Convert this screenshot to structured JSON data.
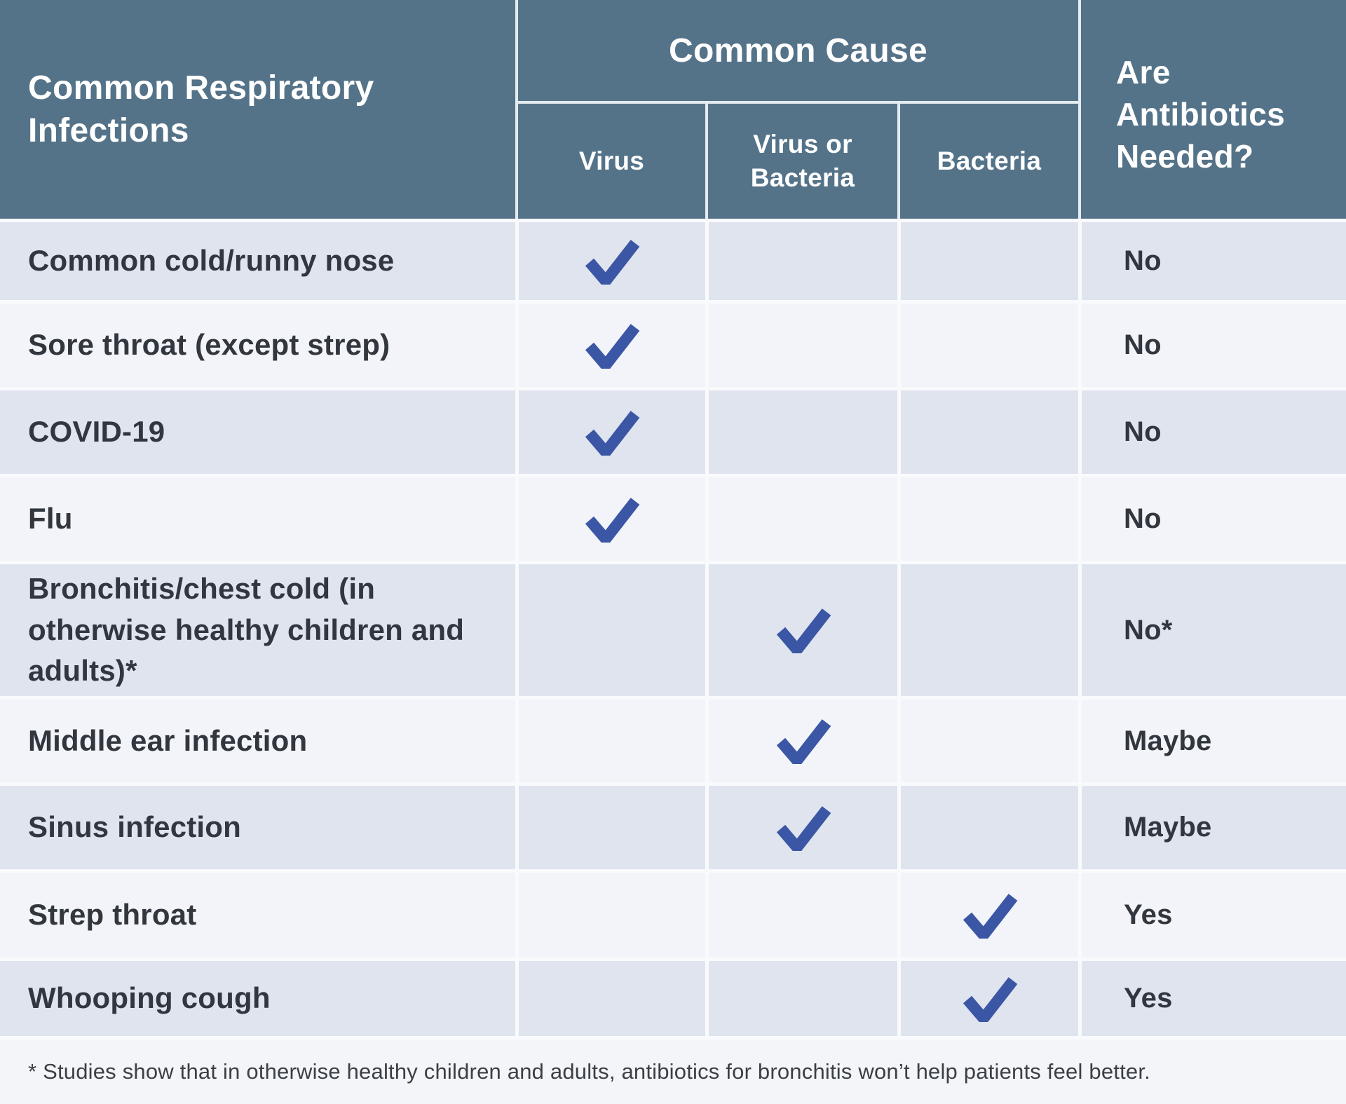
{
  "table": {
    "corner_header": "Common Respiratory\nInfections",
    "cause_group_header": "Common Cause",
    "cause_columns": [
      {
        "key": "virus",
        "label": "Virus"
      },
      {
        "key": "virus_or_bacteria",
        "label": "Virus or\nBacteria"
      },
      {
        "key": "bacteria",
        "label": "Bacteria"
      }
    ],
    "antibiotics_header": "Are\nAntibiotics\nNeeded?",
    "rows": [
      {
        "label": "Common cold/runny nose",
        "cause": "virus",
        "answer": "No"
      },
      {
        "label": "Sore throat (except strep)",
        "cause": "virus",
        "answer": "No"
      },
      {
        "label": "COVID-19",
        "cause": "virus",
        "answer": "No"
      },
      {
        "label": "Flu",
        "cause": "virus",
        "answer": "No"
      },
      {
        "label": "Bronchitis/chest cold (in\notherwise healthy children and\nadults)*",
        "cause": "virus_or_bacteria",
        "answer": "No*"
      },
      {
        "label": "Middle ear infection",
        "cause": "virus_or_bacteria",
        "answer": "Maybe"
      },
      {
        "label": "Sinus infection",
        "cause": "virus_or_bacteria",
        "answer": "Maybe"
      },
      {
        "label": "Strep throat",
        "cause": "bacteria",
        "answer": "Yes"
      },
      {
        "label": "Whooping cough",
        "cause": "bacteria",
        "answer": "Yes"
      }
    ],
    "footnote": "* Studies show that in otherwise healthy children and adults, antibiotics for bronchitis won’t help patients feel better."
  },
  "icons": {
    "check": "check-icon"
  },
  "colors": {
    "header_bg": "#547389",
    "row_shade_dark": "#dfe4ef",
    "row_shade_light": "#f2f4f9",
    "footnote_bg": "#f3f5f9",
    "check": "#3b56a4",
    "body_text": "#32363e",
    "header_text": "#ffffff",
    "divider_body": "#f9fafc",
    "divider_header": "#e4ebf1"
  },
  "chart_data": {
    "type": "table",
    "title": "Common Respiratory Infections",
    "column_groups": [
      {
        "label": "Common Cause",
        "columns": [
          "Virus",
          "Virus or Bacteria",
          "Bacteria"
        ]
      }
    ],
    "columns": [
      "Common Respiratory Infections",
      "Virus",
      "Virus or Bacteria",
      "Bacteria",
      "Are Antibiotics Needed?"
    ],
    "rows": [
      [
        "Common cold/runny nose",
        "check",
        "",
        "",
        "No"
      ],
      [
        "Sore throat (except strep)",
        "check",
        "",
        "",
        "No"
      ],
      [
        "COVID-19",
        "check",
        "",
        "",
        "No"
      ],
      [
        "Flu",
        "check",
        "",
        "",
        "No"
      ],
      [
        "Bronchitis/chest cold (in otherwise healthy children and adults)*",
        "",
        "check",
        "",
        "No*"
      ],
      [
        "Middle ear infection",
        "",
        "check",
        "",
        "Maybe"
      ],
      [
        "Sinus infection",
        "",
        "check",
        "",
        "Maybe"
      ],
      [
        "Strep throat",
        "",
        "",
        "check",
        "Yes"
      ],
      [
        "Whooping cough",
        "",
        "",
        "check",
        "Yes"
      ]
    ],
    "footnote": "* Studies show that in otherwise healthy children and adults, antibiotics for bronchitis won’t help patients feel better.",
    "legend_position": "none",
    "grid": false
  }
}
